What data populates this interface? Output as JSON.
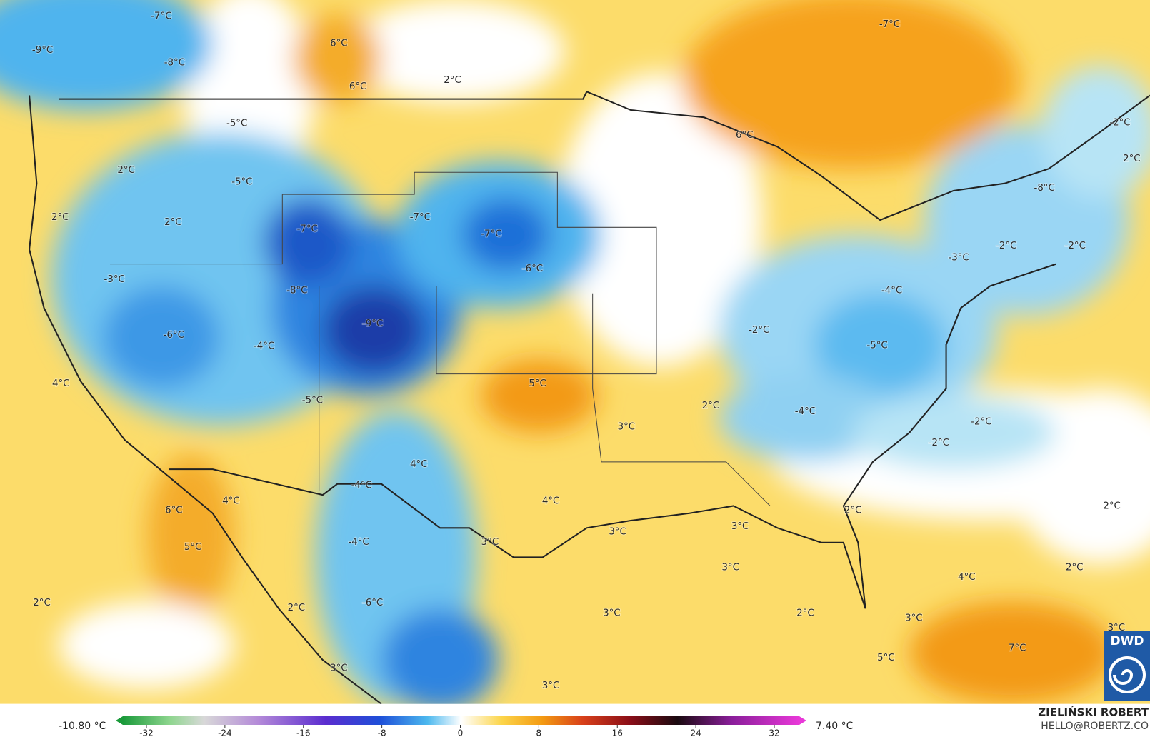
{
  "map": {
    "labels": [
      "-7°C",
      "-9°C",
      "-8°C",
      "6°C",
      "6°C",
      "2°C",
      "-7°C",
      "-5°C",
      "2°C",
      "-5°C",
      "6°C",
      "-2°C",
      "2°C",
      "2°C",
      "2°C",
      "-7°C",
      "-7°C",
      "-7°C",
      "-8°C",
      "-2°C",
      "-2°C",
      "-3°C",
      "-6°C",
      "-3°C",
      "-8°C",
      "-4°C",
      "-9°C",
      "-2°C",
      "-6°C",
      "-4°C",
      "-5°C",
      "4°C",
      "5°C",
      "-5°C",
      "2°C",
      "-4°C",
      "3°C",
      "-2°C",
      "-2°C",
      "4°C",
      "-4°C",
      "4°C",
      "4°C",
      "6°C",
      "2°C",
      "2°C",
      "3°C",
      "3°C",
      "-4°C",
      "3°C",
      "5°C",
      "3°C",
      "2°C",
      "4°C",
      "-6°C",
      "2°C",
      "2°C",
      "3°C",
      "2°C",
      "3°C",
      "3°C",
      "7°C",
      "5°C",
      "3°C",
      "3°C"
    ]
  },
  "colorbar": {
    "min_label": "-10.80 °C",
    "max_label": "7.40 °C",
    "range": [
      -32,
      32
    ],
    "ticks": [
      -32,
      -24,
      -16,
      -8,
      0,
      8,
      16,
      24,
      32
    ]
  },
  "credits": {
    "name": "ZIELIŃSKI ROBERT",
    "contact": "HELLO@ROBERTZ.CO"
  },
  "logo": "DWD"
}
